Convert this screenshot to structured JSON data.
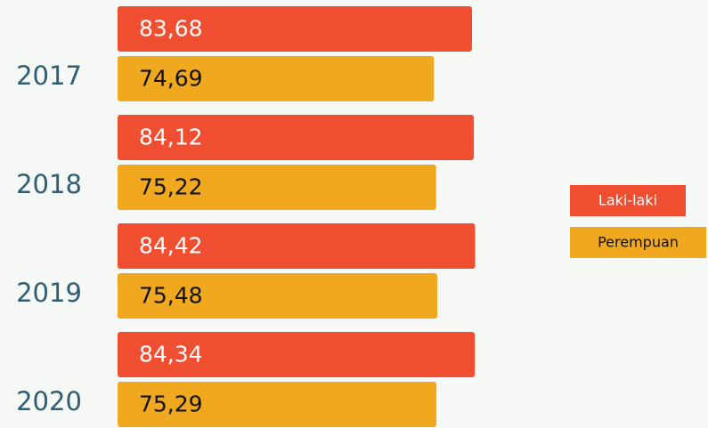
{
  "chart_data": {
    "type": "bar",
    "orientation": "horizontal",
    "categories": [
      "2017",
      "2018",
      "2019",
      "2020"
    ],
    "series": [
      {
        "name": "Laki-laki",
        "color": "#f04e30",
        "values": [
          83.68,
          84.12,
          84.42,
          84.34
        ],
        "value_labels": [
          "83,68",
          "84,12",
          "84,42",
          "84,34"
        ]
      },
      {
        "name": "Perempuan",
        "color": "#f0a81e",
        "values": [
          74.69,
          75.22,
          75.48,
          75.29
        ],
        "value_labels": [
          "74,69",
          "75,22",
          "75,48",
          "75,29"
        ]
      }
    ],
    "legend": "right"
  }
}
